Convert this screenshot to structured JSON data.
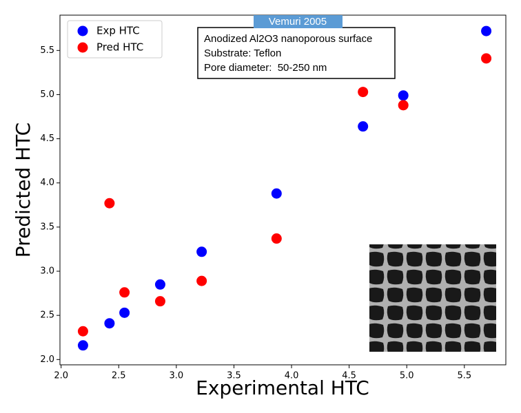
{
  "chart_data": {
    "type": "scatter",
    "title": "Vemuri 2005",
    "annotation": [
      "Anodized Al2O3 nanoporous surface",
      "Substrate: Teflon",
      "Pore diameter:  50-250 nm"
    ],
    "x_label": "Experimental HTC",
    "y_label": "Predicted HTC",
    "x": [
      2.19,
      2.42,
      2.55,
      2.86,
      3.22,
      3.87,
      4.62,
      4.97,
      5.69
    ],
    "series": [
      {
        "name": "Exp HTC",
        "color": "#0000ff",
        "values": [
          2.16,
          2.41,
          2.53,
          2.85,
          3.22,
          3.88,
          4.64,
          4.99,
          5.72
        ]
      },
      {
        "name": "Pred HTC",
        "color": "#ff0000",
        "values": [
          2.32,
          3.77,
          2.76,
          2.66,
          2.89,
          3.37,
          5.03,
          4.88,
          5.41
        ]
      }
    ],
    "xlim": [
      1.99,
      5.86
    ],
    "ylim": [
      1.94,
      5.9
    ],
    "xticks": [
      {
        "value": 2.0,
        "label": "2.0"
      },
      2.5,
      {
        "value": 3.0,
        "label": "3.0"
      },
      3.5,
      {
        "value": 4.0,
        "label": "4.0"
      },
      4.5,
      {
        "value": 5.0,
        "label": "5.0"
      },
      5.5
    ],
    "yticks": [
      {
        "value": 2.0,
        "label": "2.0"
      },
      2.5,
      {
        "value": 3.0,
        "label": "3.0"
      },
      3.5,
      {
        "value": 4.0,
        "label": "4.0"
      },
      4.5,
      {
        "value": 5.0,
        "label": "5.0"
      },
      5.5
    ],
    "legend": "upper left"
  }
}
